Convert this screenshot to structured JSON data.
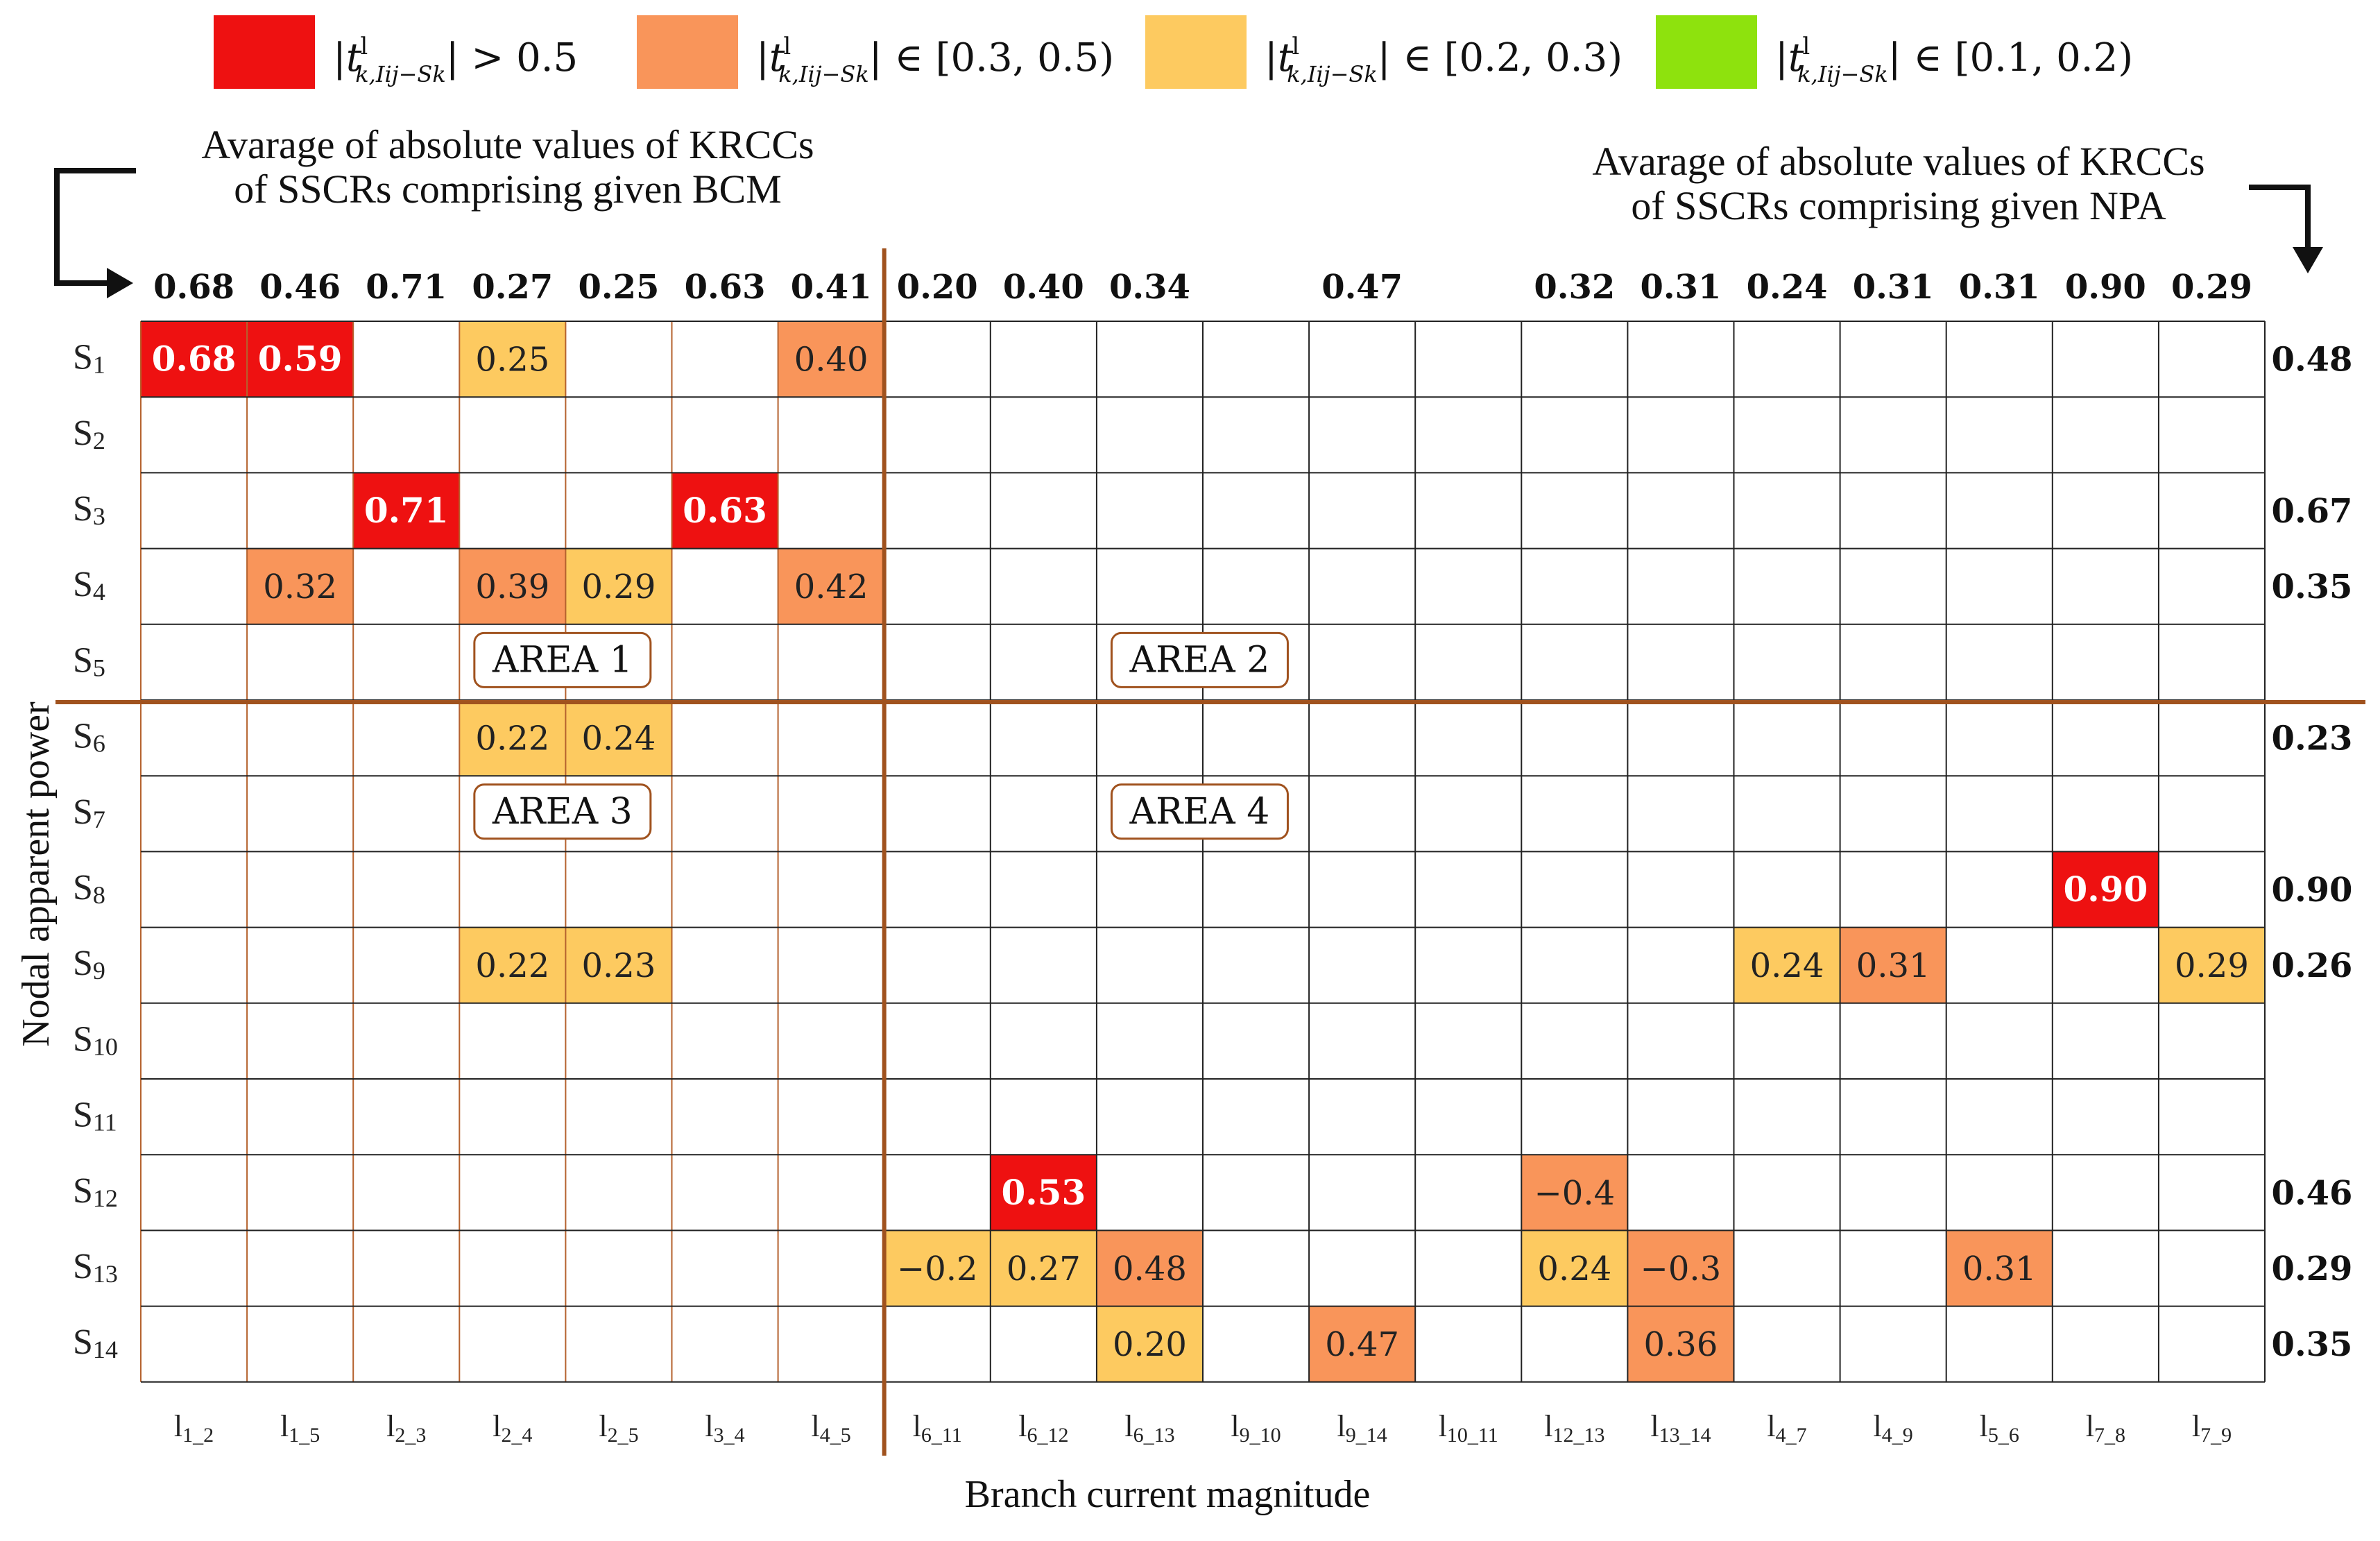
{
  "chart_data": {
    "type": "heatmap",
    "title": "",
    "xlabel": "Branch current magnitude",
    "ylabel": "Nodal apparent power",
    "legend": [
      {
        "label": "> 0.5",
        "color": "#ee1111"
      },
      {
        "label": "∈ [0.3, 0.5)",
        "color": "#f9955a"
      },
      {
        "label": "∈ [0.2, 0.3)",
        "color": "#fdca60"
      },
      {
        "label": "∈ [0.1, 0.2)",
        "color": "#8ee20d"
      }
    ],
    "legend_symbol": "|t",
    "legend_sup": "l",
    "legend_sub": "k,Iij−Sk",
    "note_left": [
      "Avarage of absolute values of KRCCs",
      "of SSCRs comprising given BCM"
    ],
    "note_right": [
      "Avarage of absolute values of KRCCs",
      "of SSCRs comprising given NPA"
    ],
    "columns": [
      {
        "base": "l",
        "sub": "1_2",
        "avg": "0.68"
      },
      {
        "base": "l",
        "sub": "1_5",
        "avg": "0.46"
      },
      {
        "base": "l",
        "sub": "2_3",
        "avg": "0.71"
      },
      {
        "base": "l",
        "sub": "2_4",
        "avg": "0.27"
      },
      {
        "base": "l",
        "sub": "2_5",
        "avg": "0.25"
      },
      {
        "base": "l",
        "sub": "3_4",
        "avg": "0.63"
      },
      {
        "base": "l",
        "sub": "4_5",
        "avg": "0.41"
      },
      {
        "base": "l",
        "sub": "6_11",
        "avg": "0.20"
      },
      {
        "base": "l",
        "sub": "6_12",
        "avg": "0.40"
      },
      {
        "base": "l",
        "sub": "6_13",
        "avg": "0.34"
      },
      {
        "base": "l",
        "sub": "9_10",
        "avg": ""
      },
      {
        "base": "l",
        "sub": "9_14",
        "avg": "0.47"
      },
      {
        "base": "l",
        "sub": "10_11",
        "avg": ""
      },
      {
        "base": "l",
        "sub": "12_13",
        "avg": "0.32"
      },
      {
        "base": "l",
        "sub": "13_14",
        "avg": "0.31"
      },
      {
        "base": "l",
        "sub": "4_7",
        "avg": "0.24"
      },
      {
        "base": "l",
        "sub": "4_9",
        "avg": "0.31"
      },
      {
        "base": "l",
        "sub": "5_6",
        "avg": "0.31"
      },
      {
        "base": "l",
        "sub": "7_8",
        "avg": "0.90"
      },
      {
        "base": "l",
        "sub": "7_9",
        "avg": "0.29"
      }
    ],
    "rows": [
      {
        "base": "S",
        "sub": "1",
        "avg": "0.48"
      },
      {
        "base": "S",
        "sub": "2",
        "avg": ""
      },
      {
        "base": "S",
        "sub": "3",
        "avg": "0.67"
      },
      {
        "base": "S",
        "sub": "4",
        "avg": "0.35"
      },
      {
        "base": "S",
        "sub": "5",
        "avg": ""
      },
      {
        "base": "S",
        "sub": "6",
        "avg": "0.23"
      },
      {
        "base": "S",
        "sub": "7",
        "avg": ""
      },
      {
        "base": "S",
        "sub": "8",
        "avg": "0.90"
      },
      {
        "base": "S",
        "sub": "9",
        "avg": "0.26"
      },
      {
        "base": "S",
        "sub": "10",
        "avg": ""
      },
      {
        "base": "S",
        "sub": "11",
        "avg": ""
      },
      {
        "base": "S",
        "sub": "12",
        "avg": "0.46"
      },
      {
        "base": "S",
        "sub": "13",
        "avg": "0.29"
      },
      {
        "base": "S",
        "sub": "14",
        "avg": "0.35"
      }
    ],
    "cells": [
      {
        "row": 0,
        "col": 0,
        "value": 0.68,
        "label": "0.68"
      },
      {
        "row": 0,
        "col": 1,
        "value": 0.59,
        "label": "0.59"
      },
      {
        "row": 0,
        "col": 3,
        "value": 0.25,
        "label": "0.25"
      },
      {
        "row": 0,
        "col": 6,
        "value": 0.4,
        "label": "0.40"
      },
      {
        "row": 2,
        "col": 2,
        "value": 0.71,
        "label": "0.71"
      },
      {
        "row": 2,
        "col": 5,
        "value": 0.63,
        "label": "0.63"
      },
      {
        "row": 3,
        "col": 1,
        "value": 0.32,
        "label": "0.32"
      },
      {
        "row": 3,
        "col": 3,
        "value": 0.39,
        "label": "0.39"
      },
      {
        "row": 3,
        "col": 4,
        "value": 0.29,
        "label": "0.29"
      },
      {
        "row": 3,
        "col": 6,
        "value": 0.42,
        "label": "0.42"
      },
      {
        "row": 5,
        "col": 3,
        "value": 0.22,
        "label": "0.22"
      },
      {
        "row": 5,
        "col": 4,
        "value": 0.24,
        "label": "0.24"
      },
      {
        "row": 7,
        "col": 18,
        "value": 0.9,
        "label": "0.90"
      },
      {
        "row": 8,
        "col": 3,
        "value": 0.22,
        "label": "0.22"
      },
      {
        "row": 8,
        "col": 4,
        "value": 0.23,
        "label": "0.23"
      },
      {
        "row": 8,
        "col": 15,
        "value": 0.24,
        "label": "0.24"
      },
      {
        "row": 8,
        "col": 16,
        "value": 0.31,
        "label": "0.31"
      },
      {
        "row": 8,
        "col": 19,
        "value": 0.29,
        "label": "0.29"
      },
      {
        "row": 11,
        "col": 8,
        "value": 0.53,
        "label": "0.53"
      },
      {
        "row": 11,
        "col": 13,
        "value": -0.4,
        "label": "−0.4"
      },
      {
        "row": 12,
        "col": 7,
        "value": -0.2,
        "label": "−0.2"
      },
      {
        "row": 12,
        "col": 8,
        "value": 0.27,
        "label": "0.27"
      },
      {
        "row": 12,
        "col": 9,
        "value": 0.48,
        "label": "0.48"
      },
      {
        "row": 12,
        "col": 13,
        "value": 0.24,
        "label": "0.24"
      },
      {
        "row": 12,
        "col": 14,
        "value": -0.3,
        "label": "−0.3"
      },
      {
        "row": 12,
        "col": 17,
        "value": 0.31,
        "label": "0.31"
      },
      {
        "row": 13,
        "col": 9,
        "value": 0.2,
        "label": "0.20"
      },
      {
        "row": 13,
        "col": 11,
        "value": 0.47,
        "label": "0.47"
      },
      {
        "row": 13,
        "col": 14,
        "value": 0.36,
        "label": "0.36"
      }
    ],
    "areas": [
      {
        "label": "AREA 1",
        "row": 4,
        "col": 3
      },
      {
        "label": "AREA 2",
        "row": 4,
        "col": 9
      },
      {
        "label": "AREA 3",
        "row": 6,
        "col": 3
      },
      {
        "label": "AREA 4",
        "row": 6,
        "col": 9
      }
    ],
    "split": {
      "after_row": 4,
      "after_col": 6
    },
    "colors": {
      "high": "#ee1111",
      "mid": "#f9955a",
      "low": "#fdca60",
      "vlow": "#8ee20d",
      "grid": "#222222",
      "left_grid": "#b5622e",
      "divider": "#a0521e",
      "area_border": "#a0521e"
    }
  }
}
